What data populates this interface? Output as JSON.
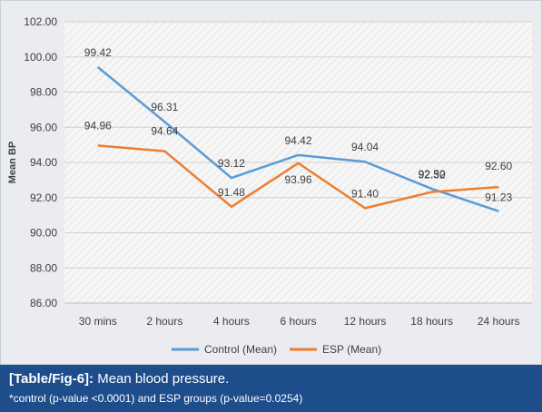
{
  "chart_data": {
    "type": "line",
    "title": "",
    "xlabel": "",
    "ylabel": "Mean BP",
    "ylim": [
      86,
      102
    ],
    "yticks": [
      "86.00",
      "88.00",
      "90.00",
      "92.00",
      "94.00",
      "96.00",
      "98.00",
      "100.00",
      "102.00"
    ],
    "categories": [
      "30 mins",
      "2 hours",
      "4 hours",
      "6 hours",
      "12 hours",
      "18 hours",
      "24 hours"
    ],
    "series": [
      {
        "name": "Control (Mean)",
        "color": "#5b9bd5",
        "values": [
          99.42,
          96.31,
          93.12,
          94.42,
          94.04,
          92.5,
          91.23
        ],
        "labels": [
          "99.42",
          "96.31",
          "93.12",
          "94.42",
          "94.04",
          "92.50",
          "91.23"
        ]
      },
      {
        "name": "ESP (Mean)",
        "color": "#ed7d31",
        "values": [
          94.96,
          94.64,
          91.48,
          93.96,
          91.4,
          92.32,
          92.6
        ],
        "labels": [
          "94.96",
          "94.64",
          "91.48",
          "93.96",
          "91.40",
          "92.32",
          "92.60"
        ]
      }
    ],
    "grid": true,
    "legend": "bottom-center"
  },
  "caption": {
    "label": "[Table/Fig-6]:",
    "text": " Mean blood pressure.",
    "note": "*control (p-value <0.0001) and ESP groups (p-value=0.0254)"
  }
}
